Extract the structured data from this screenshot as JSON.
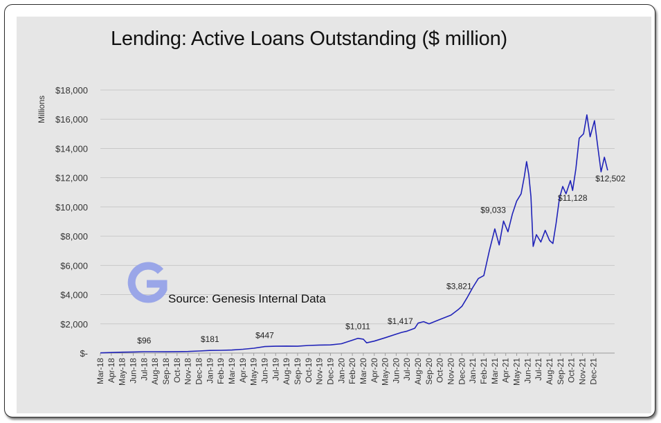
{
  "chart_data": {
    "type": "line",
    "title": "Lending: Active Loans Outstanding ($ million)",
    "ylabel": "Millions",
    "ylim": [
      0,
      18000
    ],
    "yticks": [
      {
        "value": 0,
        "label": "$-"
      },
      {
        "value": 2000,
        "label": "$2,000"
      },
      {
        "value": 4000,
        "label": "$4,000"
      },
      {
        "value": 6000,
        "label": "$6,000"
      },
      {
        "value": 8000,
        "label": "$8,000"
      },
      {
        "value": 10000,
        "label": "$10,000"
      },
      {
        "value": 12000,
        "label": "$12,000"
      },
      {
        "value": 14000,
        "label": "$14,000"
      },
      {
        "value": 16000,
        "label": "$16,000"
      },
      {
        "value": 18000,
        "label": "$18,000"
      }
    ],
    "grid": true,
    "line_color": "#1f22b8",
    "categories": [
      "Mar-18",
      "Apr-18",
      "May-18",
      "Jun-18",
      "Jul-18",
      "Aug-18",
      "Sep-18",
      "Oct-18",
      "Nov-18",
      "Dec-18",
      "Jan-19",
      "Feb-19",
      "Mar-19",
      "Apr-19",
      "May-19",
      "Jun-19",
      "Jul-19",
      "Aug-19",
      "Sep-19",
      "Oct-19",
      "Nov-19",
      "Dec-19",
      "Jan-20",
      "Feb-20",
      "Mar-20",
      "Apr-20",
      "May-20",
      "Jun-20",
      "Jul-20",
      "Aug-20",
      "Sep-20",
      "Oct-20",
      "Nov-20",
      "Dec-20",
      "Jan-21",
      "Feb-21",
      "Mar-21",
      "Apr-21",
      "May-21",
      "Jun-21",
      "Jul-21",
      "Aug-21",
      "Sep-21",
      "Oct-21",
      "Nov-21",
      "Dec-21"
    ],
    "series": [
      {
        "points": [
          [
            0,
            15
          ],
          [
            1,
            40
          ],
          [
            2,
            60
          ],
          [
            3,
            75
          ],
          [
            4,
            96
          ],
          [
            5,
            95
          ],
          [
            6,
            90
          ],
          [
            7,
            100
          ],
          [
            8,
            110
          ],
          [
            9,
            140
          ],
          [
            10,
            181
          ],
          [
            11,
            190
          ],
          [
            12,
            210
          ],
          [
            13,
            260
          ],
          [
            14,
            330
          ],
          [
            15,
            447
          ],
          [
            16,
            470
          ],
          [
            17,
            480
          ],
          [
            18,
            470
          ],
          [
            19,
            520
          ],
          [
            20,
            550
          ],
          [
            21,
            560
          ],
          [
            22,
            640
          ],
          [
            23,
            880
          ],
          [
            23.5,
            1011
          ],
          [
            24,
            950
          ],
          [
            24.3,
            700
          ],
          [
            25,
            820
          ],
          [
            26,
            1050
          ],
          [
            27,
            1300
          ],
          [
            27.5,
            1417
          ],
          [
            28,
            1500
          ],
          [
            28.7,
            1700
          ],
          [
            29,
            2050
          ],
          [
            29.5,
            2150
          ],
          [
            30,
            2000
          ],
          [
            31,
            2300
          ],
          [
            32,
            2600
          ],
          [
            32.7,
            3000
          ],
          [
            33,
            3200
          ],
          [
            33.5,
            3821
          ],
          [
            34,
            4500
          ],
          [
            34.5,
            5100
          ],
          [
            35,
            5300
          ],
          [
            35.5,
            7000
          ],
          [
            36,
            8500
          ],
          [
            36.4,
            7400
          ],
          [
            36.8,
            9033
          ],
          [
            37.2,
            8300
          ],
          [
            37.6,
            9500
          ],
          [
            38,
            10400
          ],
          [
            38.4,
            10900
          ],
          [
            38.7,
            12100
          ],
          [
            38.9,
            13100
          ],
          [
            39.1,
            12200
          ],
          [
            39.3,
            10700
          ],
          [
            39.5,
            7300
          ],
          [
            39.8,
            8100
          ],
          [
            40.2,
            7600
          ],
          [
            40.6,
            8400
          ],
          [
            41,
            7700
          ],
          [
            41.3,
            7500
          ],
          [
            41.6,
            8900
          ],
          [
            41.9,
            10600
          ],
          [
            42.2,
            11400
          ],
          [
            42.5,
            10900
          ],
          [
            42.9,
            11800
          ],
          [
            43.1,
            11128
          ],
          [
            43.4,
            12600
          ],
          [
            43.7,
            14700
          ],
          [
            44.1,
            15000
          ],
          [
            44.4,
            16300
          ],
          [
            44.7,
            14800
          ],
          [
            45.1,
            15900
          ],
          [
            45.4,
            14100
          ],
          [
            45.7,
            12400
          ],
          [
            46,
            13400
          ],
          [
            46.3,
            12502
          ]
        ]
      }
    ],
    "annotations": [
      {
        "x": 4,
        "y": 96,
        "label": "$96"
      },
      {
        "x": 10,
        "y": 181,
        "label": "$181"
      },
      {
        "x": 15,
        "y": 447,
        "label": "$447"
      },
      {
        "x": 23.5,
        "y": 1011,
        "label": "$1,011"
      },
      {
        "x": 27.5,
        "y": 1417,
        "label": "$1,417"
      },
      {
        "x": 33.5,
        "y": 3821,
        "label": "$3,821"
      },
      {
        "x": 36.8,
        "y": 9033,
        "label": "$9,033"
      },
      {
        "x": 43.1,
        "y": 11128,
        "label": "$11,128"
      },
      {
        "x": 46.3,
        "y": 12502,
        "label": "$12,502"
      }
    ],
    "source": "Source: Genesis Internal Data"
  },
  "logo": {
    "name": "genesis-g-logo",
    "color": "#9aa6e8"
  }
}
